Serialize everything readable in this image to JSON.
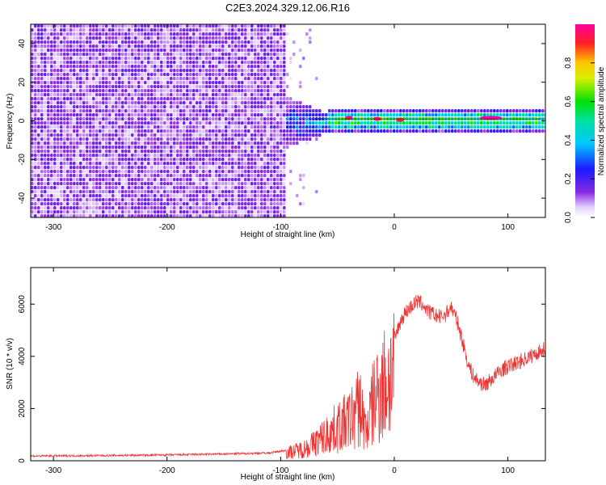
{
  "title": "C2E3.2024.329.12.06.R16",
  "colors": {
    "background": "#ffffff",
    "axes": "#000000",
    "snr_line": "#ee3333",
    "spectrum_noise": "#7a2ee6"
  },
  "chart_data": [
    {
      "type": "heatmap",
      "title": "C2E3.2024.329.12.06.R16",
      "xlabel": "Height of straight line (km)",
      "ylabel": "Frequency (Hz)",
      "xlim": [
        -320,
        133
      ],
      "ylim": [
        -50,
        50
      ],
      "x_ticks": [
        -300,
        -200,
        -100,
        0,
        100
      ],
      "y_ticks": [
        -40,
        -20,
        0,
        20,
        40
      ],
      "x_tick_labels": [
        "-300",
        "-200",
        "-100",
        "0",
        "100"
      ],
      "y_tick_labels": [
        "-40",
        "-20",
        "0",
        "20",
        "40"
      ],
      "colorbar": {
        "label": "Normalized spectral amplitude",
        "range": [
          0.0,
          1.0
        ],
        "ticks": [
          0.0,
          0.2,
          0.4,
          0.6,
          0.8
        ],
        "tick_labels": [
          "0.0",
          "0.2",
          "0.4",
          "0.6",
          "0.8"
        ],
        "colormap": "rainbow (white-violet-blue-cyan-green-yellow-red-magenta)"
      },
      "regions": [
        {
          "x_range": [
            -320,
            -95
          ],
          "freq_range": [
            -50,
            50
          ],
          "amplitude": "low (0.05-0.2), broadband noise"
        },
        {
          "x_range": [
            -110,
            -60
          ],
          "freq_range": [
            -10,
            10
          ],
          "amplitude": "transition 0.1-0.4"
        },
        {
          "x_range": [
            -60,
            133
          ],
          "center_freq": 1,
          "half_width_hz": 3,
          "amplitude": "0.4-1.0 narrow signal band"
        }
      ],
      "peak_points": [
        {
          "x": -40,
          "freq": 1.5,
          "amplitude": 0.95
        },
        {
          "x": -15,
          "freq": 1.0,
          "amplitude": 0.95
        },
        {
          "x": 5,
          "freq": 0.5,
          "amplitude": 0.9
        },
        {
          "x": 85,
          "freq": 1.5,
          "amplitude": 1.0
        }
      ],
      "grid": false,
      "legend": "colorbar right"
    },
    {
      "type": "line",
      "xlabel": "Height of straight line (km)",
      "ylabel": "SNR (10 * v/v)",
      "xlim": [
        -320,
        133
      ],
      "ylim": [
        0,
        7400
      ],
      "x_ticks": [
        -300,
        -200,
        -100,
        0,
        100
      ],
      "y_ticks": [
        0,
        2000,
        4000,
        6000
      ],
      "x_tick_labels": [
        "-300",
        "-200",
        "-100",
        "0",
        "100"
      ],
      "y_tick_labels": [
        "0",
        "2000",
        "4000",
        "6000"
      ],
      "series": [
        {
          "x": [
            -320,
            -250,
            -200,
            -150,
            -110,
            -95,
            -80,
            -70,
            -60,
            -50,
            -40,
            -35,
            -30,
            -25,
            -20,
            -15,
            -10,
            -5,
            0,
            5,
            10,
            15,
            20,
            25,
            30,
            35,
            40,
            45,
            50,
            55,
            60,
            65,
            70,
            75,
            80,
            85,
            90,
            95,
            100,
            110,
            120,
            133
          ],
          "y": [
            180,
            200,
            220,
            260,
            300,
            400,
            600,
            900,
            1300,
            1700,
            2000,
            2400,
            2800,
            1500,
            2600,
            3600,
            3800,
            4200,
            4600,
            5300,
            5700,
            5900,
            6100,
            6000,
            5700,
            5600,
            5500,
            5600,
            5900,
            5400,
            4600,
            3700,
            3200,
            3000,
            2900,
            3100,
            3300,
            3500,
            3600,
            3800,
            4000,
            4300
          ]
        }
      ],
      "grid": false
    }
  ]
}
